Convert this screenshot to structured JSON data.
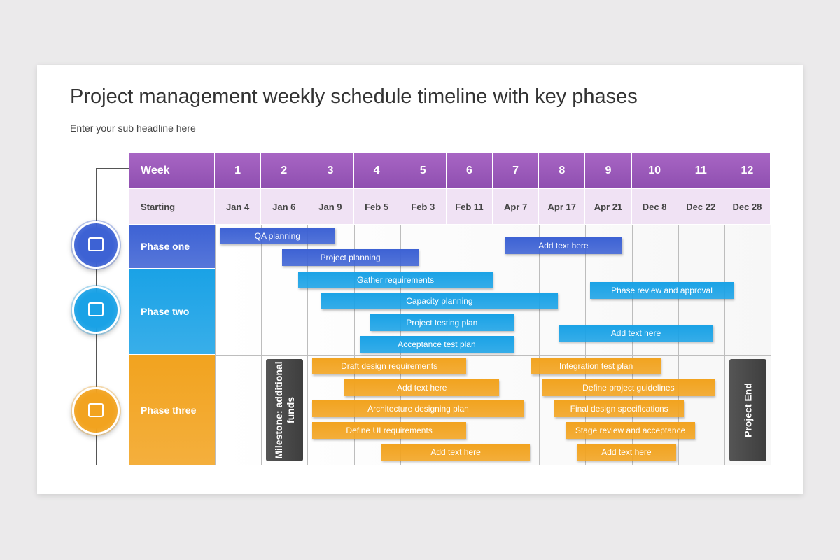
{
  "header": {
    "title": "Project management weekly schedule timeline with key phases",
    "subtitle": "Enter your sub headline here"
  },
  "table": {
    "week_label": "Week",
    "weeks": [
      1,
      2,
      3,
      4,
      5,
      6,
      7,
      8,
      9,
      10,
      11,
      12
    ],
    "starting_label": "Starting",
    "dates": [
      "Jan 4",
      "Jan 6",
      "Jan 9",
      "Feb 5",
      "Feb 3",
      "Feb 11",
      "Apr 7",
      "Apr 17",
      "Apr 21",
      "Dec 8",
      "Dec 22",
      "Dec 28"
    ]
  },
  "phases": [
    {
      "name": "Phase one",
      "color": "#3d62d4",
      "tasks": [
        {
          "label": "QA planning",
          "start": 1.1,
          "end": 3.6
        },
        {
          "label": "Project planning",
          "start": 2.45,
          "end": 5.4
        },
        {
          "label": "Add text here",
          "start": 7.25,
          "end": 9.8
        }
      ]
    },
    {
      "name": "Phase two",
      "color": "#1aa2e6",
      "tasks": [
        {
          "label": "Gather requirements",
          "start": 2.8,
          "end": 7.0
        },
        {
          "label": "Capacity planning",
          "start": 3.3,
          "end": 8.4
        },
        {
          "label": "Project testing plan",
          "start": 4.35,
          "end": 7.45
        },
        {
          "label": "Acceptance test plan",
          "start": 4.13,
          "end": 7.45
        },
        {
          "label": "Phase review and approval",
          "start": 9.1,
          "end": 12.2
        },
        {
          "label": "Add text here",
          "start": 8.42,
          "end": 11.76
        }
      ]
    },
    {
      "name": "Phase three",
      "color": "#f2a31f",
      "tasks": [
        {
          "label": "Draft design requirements",
          "start": 3.1,
          "end": 6.43
        },
        {
          "label": "Add text here",
          "start": 3.8,
          "end": 7.14
        },
        {
          "label": "Architecture designing plan",
          "start": 3.1,
          "end": 7.68
        },
        {
          "label": "Define UI requirements",
          "start": 3.1,
          "end": 6.43
        },
        {
          "label": "Add text here",
          "start": 4.6,
          "end": 7.8
        },
        {
          "label": "Integration test plan",
          "start": 7.83,
          "end": 10.63
        },
        {
          "label": "Define project guidelines",
          "start": 8.07,
          "end": 11.79
        },
        {
          "label": "Final design specifications",
          "start": 8.33,
          "end": 11.13
        },
        {
          "label": "Stage review and acceptance",
          "start": 8.57,
          "end": 11.37
        },
        {
          "label": "Add text here",
          "start": 8.81,
          "end": 10.96
        }
      ]
    }
  ],
  "milestones": [
    {
      "label": "Milestone: additional funds"
    },
    {
      "label": "Project End"
    }
  ]
}
